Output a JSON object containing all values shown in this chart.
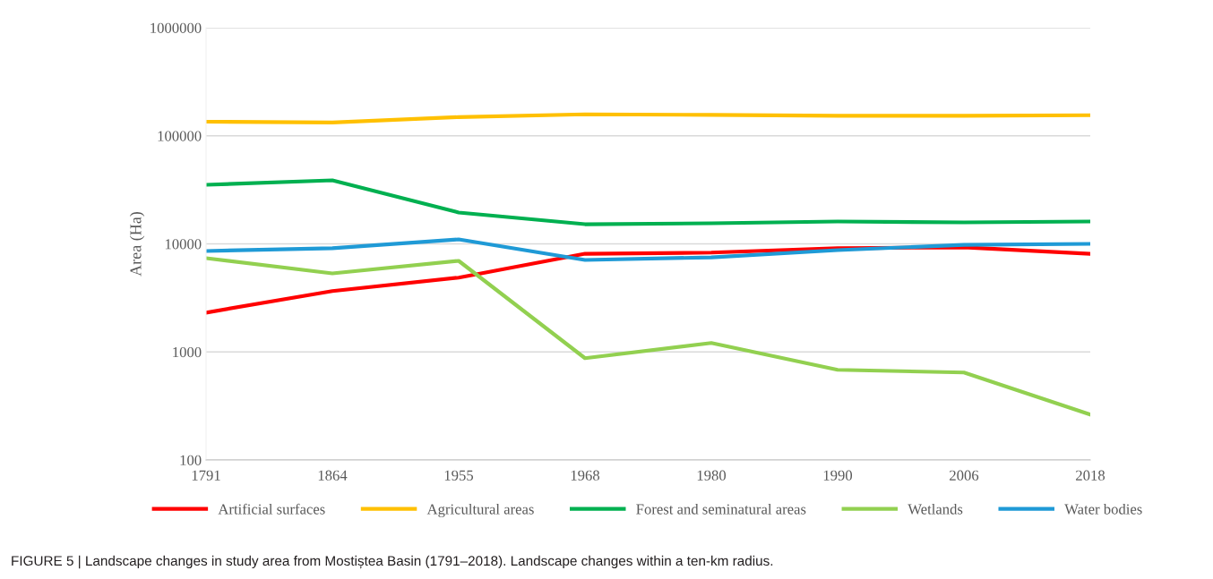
{
  "chart_data": {
    "type": "line",
    "ylabel": "Area (Ha)",
    "categories": [
      "1791",
      "1864",
      "1955",
      "1968",
      "1980",
      "1990",
      "2006",
      "2018"
    ],
    "series": [
      {
        "name": "Artificial surfaces",
        "color": "#ff0000",
        "values": [
          2310,
          3660,
          4870,
          8100,
          8300,
          9100,
          9300,
          8100
        ]
      },
      {
        "name": "Agricultural areas",
        "color": "#ffc000",
        "values": [
          135000,
          133000,
          149000,
          158000,
          156000,
          153000,
          153000,
          155000
        ]
      },
      {
        "name": "Forest and seminatural areas",
        "color": "#00b050",
        "values": [
          35200,
          38700,
          19500,
          15200,
          15500,
          16100,
          15800,
          16100
        ]
      },
      {
        "name": "Wetlands",
        "color": "#92d050",
        "values": [
          7370,
          5330,
          6960,
          875,
          1210,
          683,
          645,
          263
        ]
      },
      {
        "name": "Water bodies",
        "color": "#1f9ad6",
        "values": [
          8590,
          9100,
          11000,
          7100,
          7500,
          8750,
          9800,
          10000
        ]
      }
    ],
    "log": "y",
    "ylim": [
      100,
      1000000
    ],
    "yticks": [
      100,
      1000,
      10000,
      100000,
      1000000
    ],
    "grid": "y",
    "legend": "bottom",
    "marker": "none",
    "line_style": "solid",
    "annotations": [
      "FIGURE 5 | Landscape changes in study area from Mostiștea Basin (1791–2018). Landscape changes within a ten-km radius."
    ]
  }
}
